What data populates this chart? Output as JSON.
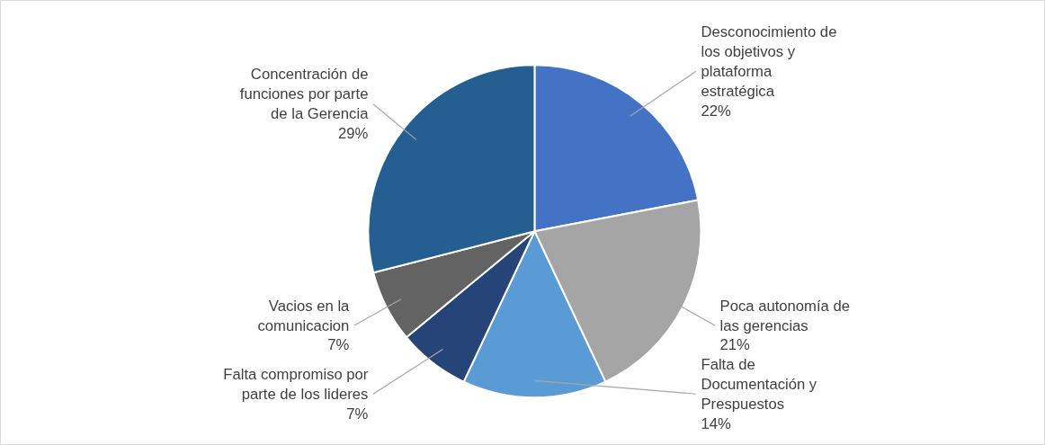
{
  "chart_data": {
    "type": "pie",
    "categories": [
      "Desconocimiento de los objetivos y plataforma estratégica",
      "Poca autonomía de las gerencias",
      "Falta de Documentación y Prespuestos",
      "Falta compromiso por parte de los lideres",
      "Vacios en la comunicacion",
      "Concentración de funciones por parte de la Gerencia"
    ],
    "values": [
      22,
      21,
      14,
      7,
      7,
      29
    ],
    "value_labels": [
      "22%",
      "21%",
      "14%",
      "7%",
      "7%",
      "29%"
    ],
    "colors": [
      "#4472c4",
      "#a5a5a5",
      "#5b9bd5",
      "#264478",
      "#636363",
      "#255e91"
    ]
  }
}
